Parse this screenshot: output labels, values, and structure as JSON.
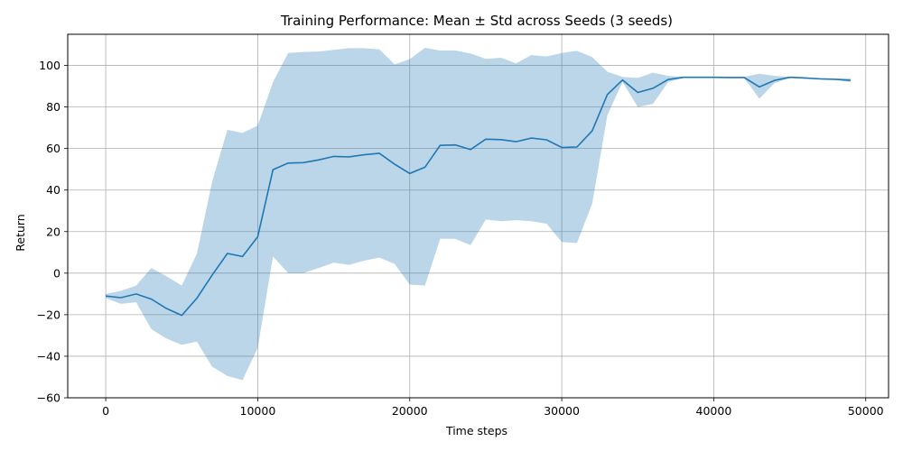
{
  "chart_data": {
    "type": "line",
    "title": "Training Performance: Mean ± Std across Seeds (3 seeds)",
    "xlabel": "Time steps",
    "ylabel": "Return",
    "xlim": [
      -2500,
      51500
    ],
    "ylim": [
      -60,
      115
    ],
    "grid": true,
    "x_ticks": [
      0,
      10000,
      20000,
      30000,
      40000,
      50000
    ],
    "x_tick_labels": [
      "0",
      "10000",
      "20000",
      "30000",
      "40000",
      "50000"
    ],
    "y_ticks": [
      -60,
      -40,
      -20,
      0,
      20,
      40,
      60,
      80,
      100
    ],
    "y_tick_labels": [
      "−60",
      "−40",
      "−20",
      "0",
      "20",
      "40",
      "60",
      "80",
      "100"
    ],
    "x": [
      0,
      1000,
      2000,
      3000,
      4000,
      5000,
      6000,
      7000,
      8000,
      9000,
      10000,
      11000,
      12000,
      13000,
      14000,
      15000,
      16000,
      17000,
      18000,
      19000,
      20000,
      21000,
      22000,
      23000,
      24000,
      25000,
      26000,
      27000,
      28000,
      29000,
      30000,
      31000,
      32000,
      33000,
      34000,
      35000,
      36000,
      37000,
      38000,
      39000,
      40000,
      41000,
      42000,
      43000,
      44000,
      45000,
      46000,
      47000,
      48000,
      49000
    ],
    "series": [
      {
        "values": [
          -11,
          -11.8,
          -10,
          -12.5,
          -17,
          -20.3,
          -12,
          -1,
          9.5,
          8,
          17.5,
          49.8,
          53,
          53.2,
          54.5,
          56.2,
          56,
          57,
          57.7,
          52.5,
          48,
          51,
          61.5,
          61.7,
          59.5,
          64.5,
          64.3,
          63.3,
          65,
          64.2,
          60.5,
          60.7,
          68.5,
          86,
          93,
          87,
          89,
          93.2,
          94.3,
          94.3,
          94.3,
          94.2,
          94.2,
          89.7,
          92.8,
          94.3,
          94,
          93.5,
          93.3,
          92.8
        ],
        "lower": [
          -12,
          -14.8,
          -14,
          -27,
          -31.5,
          -34.5,
          -33,
          -45,
          -49.5,
          -51.5,
          -36,
          8,
          0,
          0,
          2.5,
          5,
          4,
          6,
          7.5,
          4.5,
          -5.5,
          -6,
          16.5,
          16.5,
          13.5,
          25.8,
          25,
          25.5,
          25,
          23.8,
          15,
          14.5,
          33.5,
          76,
          92,
          80,
          81.5,
          92,
          94,
          94,
          94,
          94,
          94,
          84,
          91.5,
          94,
          93.5,
          93.5,
          93,
          92
        ],
        "upper": [
          -10,
          -8.5,
          -6,
          2.5,
          -1.5,
          -6,
          9.5,
          44,
          69,
          67.5,
          71,
          92,
          106,
          106.5,
          106.7,
          107.5,
          108.3,
          108.3,
          107.7,
          100.5,
          103,
          108.5,
          107.2,
          107.2,
          105.8,
          103.2,
          103.7,
          101,
          105,
          104.3,
          106,
          107,
          104,
          97,
          94.5,
          94,
          96.5,
          95,
          94.5,
          94.5,
          94.6,
          94.5,
          94.5,
          96,
          95,
          94.5,
          94.2,
          94,
          93.8,
          93.8
        ]
      }
    ],
    "colors": {
      "line": "#1f77b4",
      "band": "#1f77b4",
      "grid": "#b0b0b0"
    }
  }
}
